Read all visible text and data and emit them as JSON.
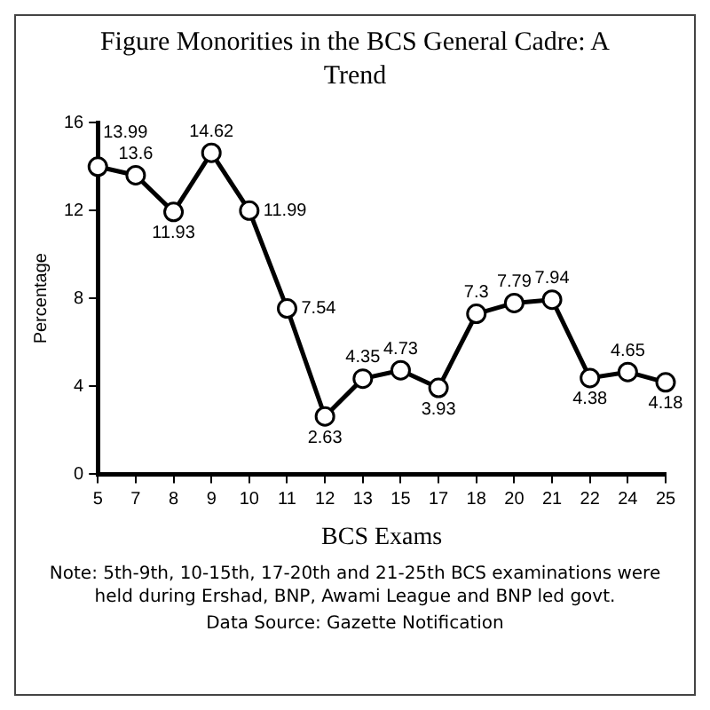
{
  "chart_data": {
    "type": "line",
    "title": "Figure Monorities in the BCS General Cadre: A Trend",
    "xlabel": "BCS Exams",
    "ylabel": "Percentage",
    "categories": [
      "5",
      "7",
      "8",
      "9",
      "10",
      "11",
      "12",
      "13",
      "15",
      "17",
      "18",
      "20",
      "21",
      "22",
      "24",
      "25"
    ],
    "values": [
      13.99,
      13.6,
      11.93,
      14.62,
      11.99,
      7.54,
      2.63,
      4.35,
      4.73,
      3.93,
      7.3,
      7.79,
      7.94,
      4.38,
      4.65,
      4.18
    ],
    "color": "#000000",
    "ylim": [
      0,
      16
    ],
    "yticks": [
      0,
      4,
      8,
      12,
      16
    ],
    "grid": false,
    "legend": false,
    "marker": "circle",
    "line_style": "solid",
    "data_labels": true,
    "annotations": [
      "Note: 5th-9th, 10-15th, 17-20th and 21-25th BCS examinations were held during Ershad, BNP, Awami League and BNP led govt.",
      "Data Source: Gazette Notification"
    ]
  }
}
